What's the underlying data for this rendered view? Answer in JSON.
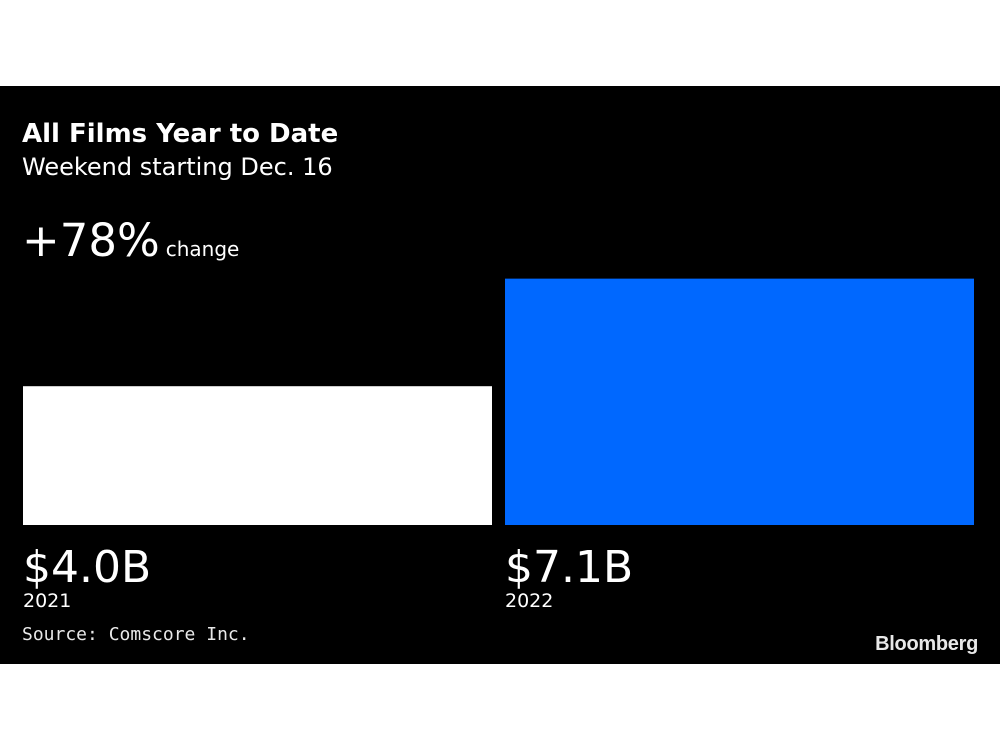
{
  "chart_data": {
    "type": "bar",
    "title": "All Films Year to Date",
    "subtitle": "Weekend starting Dec. 16",
    "headline": {
      "value": "+78%",
      "label": "change"
    },
    "categories": [
      "2021",
      "2022"
    ],
    "values": [
      4.0,
      7.1
    ],
    "value_labels": [
      "$4.0B",
      "$7.1B"
    ],
    "unit": "$B",
    "colors": [
      "#ffffff",
      "#0068ff"
    ],
    "source": "Source: Comscore Inc."
  },
  "branding": {
    "logo_text": "Bloomberg"
  }
}
